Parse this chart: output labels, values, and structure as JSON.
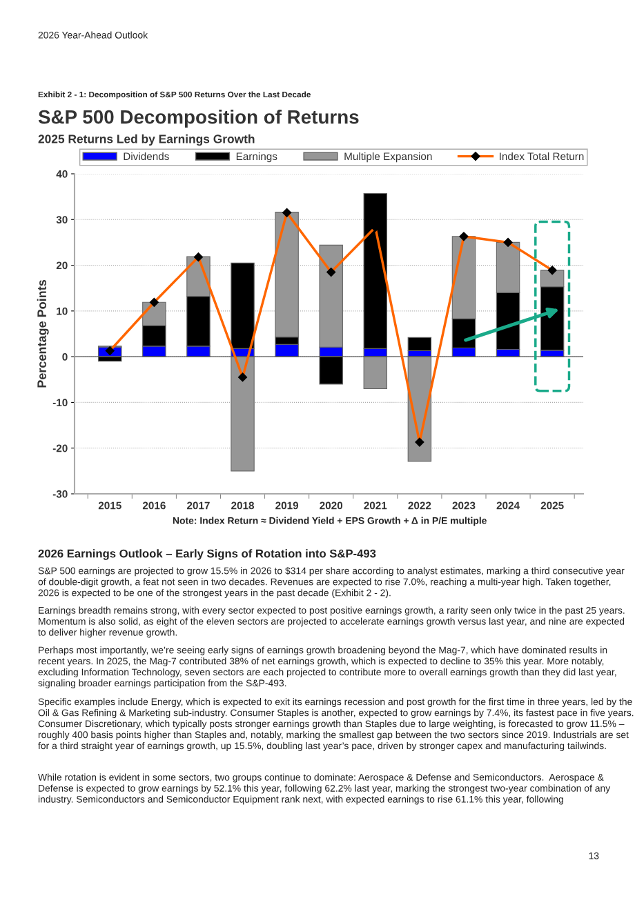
{
  "chart_data": {
    "type": "bar",
    "title": "S&P 500 Decomposition of Returns",
    "subtitle": "2025 Returns Led by Earnings Growth",
    "ylabel": "Percentage Points",
    "categories": [
      "2015",
      "2016",
      "2017",
      "2018",
      "2019",
      "2020",
      "2021",
      "2022",
      "2023",
      "2024",
      "2025"
    ],
    "stacked": true,
    "series": [
      {
        "name": "Dividends",
        "color": "#0000ff",
        "values": [
          2.1,
          2.3,
          2.3,
          1.8,
          2.7,
          2.1,
          1.8,
          1.3,
          1.9,
          1.6,
          1.4
        ]
      },
      {
        "name": "Earnings",
        "color": "#000000",
        "values": [
          -1.0,
          4.5,
          10.9,
          18.7,
          1.6,
          -6.0,
          33.9,
          2.9,
          6.4,
          12.4,
          13.9
        ]
      },
      {
        "name": "Multiple Expansion",
        "color": "#969696",
        "values": [
          0.2,
          5.1,
          8.7,
          -25.0,
          27.3,
          22.3,
          -7.0,
          -22.9,
          18.0,
          11.0,
          3.6
        ]
      },
      {
        "name": "Index Total Return",
        "type": "line",
        "color": "#ff6600",
        "marker": "diamond",
        "values": [
          1.3,
          11.9,
          21.8,
          -4.5,
          31.5,
          18.5,
          28.3,
          -18.7,
          26.3,
          25.0,
          18.9
        ]
      }
    ],
    "ylim": [
      -30,
      40
    ],
    "yticks": [
      -30,
      -20,
      -10,
      0,
      10,
      20,
      30,
      40
    ],
    "grid": "y",
    "legend": "top",
    "ref_lines": [
      {
        "axis": "y",
        "value": 0,
        "color": "#555555"
      }
    ],
    "annotations": [
      "2026 Year-Ahead Outlook",
      "Exhibit 2 - 1: Decomposition of S&P 500 Returns Over the Last Decade",
      "Note: Index Return ≈ Dividend Yield + EPS Growth + Δ in P/E multiple",
      "2026 Earnings Outlook – Early Signs of Rotation into S&P-493",
      "S&P 500 earnings are projected to grow 15.5% in 2026 to $314 per share according to analyst estimates, marking a third consecutive year of double-digit growth, a feat not seen in two decades. Revenues are expected to rise 7.0%, reaching a multi-year high. Taken together, 2026 is expected to be one of the strongest years in the past decade (Exhibit 2 - 2).",
      "Earnings breadth remains strong, with every sector expected to post positive earnings growth, a rarity seen only twice in the past 25 years. Momentum is also solid, as eight of the eleven sectors are projected to accelerate earnings growth versus last year, and nine are expected to deliver higher revenue growth.",
      "Perhaps most importantly, we’re seeing early signs of earnings growth broadening beyond the Mag-7, which have dominated results in recent years. In 2025, the Mag-7 contributed 38% of net earnings growth, which is expected to decline to 35% this year. More notably, excluding Information Technology, seven sectors are each projected to contribute more to overall earnings growth than they did last year, signaling broader earnings participation from the S&P-493.",
      "Specific examples include Energy, which is expected to exit its earnings recession and post growth for the first time in three years, led by the Oil & Gas Refining & Marketing sub-industry. Consumer Staples is another, expected to grow earnings by 7.4%, its fastest pace in five years. Consumer Discretionary, which typically posts stronger earnings growth than Staples due to large weighting, is forecasted to grow 11.5% – roughly 400 basis points higher than Staples and, notably, marking the smallest gap between the two sectors since 2019. Industrials are set for a third straight year of earnings growth, up 15.5%, doubling last year’s pace, driven by stronger capex and manufacturing tailwinds.",
      "While rotation is evident in some sectors, two groups continue to dominate: Aerospace & Defense and Semiconductors.  Aerospace & Defense is expected to grow earnings by 52.1% this year, following 62.2% last year, marking the strongest two-year combination of any industry. Semiconductors and Semiconductor Equipment rank next, with expected earnings to rise 61.1% this year, following",
      "13"
    ]
  }
}
